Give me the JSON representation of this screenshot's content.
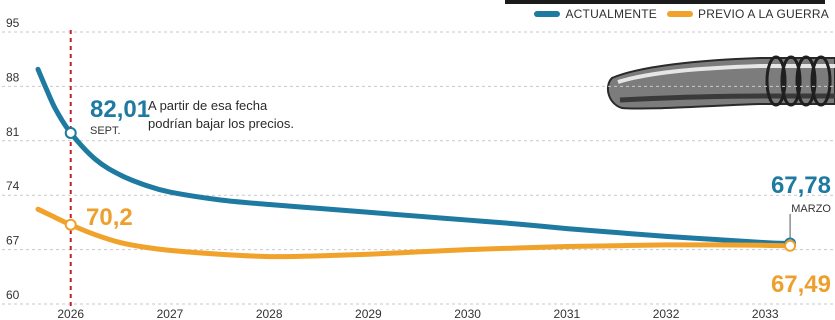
{
  "legend": {
    "actual_label": "ACTUALMENTE",
    "previo_label": "PREVIO A LA GUERRA"
  },
  "annotation": {
    "sept_value": "82,01",
    "sept_label": "SEPT.",
    "note_line1": "A partir de esa fecha",
    "note_line2": "podrían bajar los precios.",
    "orange_start_value": "70,2",
    "march_value": "67,78",
    "march_label": "MARZO",
    "end_orange_value": "67,49"
  },
  "colors": {
    "actual": "#1e7aa0",
    "previo": "#f0a22a",
    "marker_line": "#c8202a",
    "grid": "#c9c9c9"
  },
  "chart_data": {
    "type": "line",
    "x_ticks": [
      "2026",
      "2027",
      "2028",
      "2029",
      "2030",
      "2031",
      "2032",
      "2033"
    ],
    "y_ticks": [
      60,
      67,
      74,
      81,
      88,
      95
    ],
    "ylim": [
      60,
      95
    ],
    "xlim": [
      2025.65,
      2033.35
    ],
    "vertical_marker_x": 2026.0,
    "series": [
      {
        "name": "ACTUALMENTE",
        "x": [
          2025.67,
          2025.75,
          2025.85,
          2026.0,
          2026.25,
          2026.5,
          2026.75,
          2027.0,
          2027.5,
          2028.0,
          2028.5,
          2029.0,
          2029.5,
          2030.0,
          2030.5,
          2031.0,
          2031.5,
          2032.0,
          2032.5,
          2033.0,
          2033.25
        ],
        "y": [
          90.2,
          87.8,
          85.0,
          82.01,
          78.6,
          76.6,
          75.3,
          74.4,
          73.4,
          72.8,
          72.3,
          71.8,
          71.3,
          70.8,
          70.3,
          69.7,
          69.2,
          68.7,
          68.3,
          67.9,
          67.78
        ]
      },
      {
        "name": "PREVIO A LA GUERRA",
        "x": [
          2025.67,
          2025.8,
          2026.0,
          2026.25,
          2026.5,
          2026.75,
          2027.0,
          2027.5,
          2028.0,
          2028.5,
          2029.0,
          2029.5,
          2030.0,
          2030.5,
          2031.0,
          2031.5,
          2032.0,
          2032.5,
          2033.0,
          2033.25
        ],
        "y": [
          72.2,
          71.4,
          70.2,
          68.9,
          67.9,
          67.3,
          66.9,
          66.4,
          66.1,
          66.2,
          66.4,
          66.7,
          67.0,
          67.2,
          67.4,
          67.5,
          67.6,
          67.6,
          67.55,
          67.49
        ]
      }
    ],
    "highlights": [
      {
        "series": "ACTUALMENTE",
        "x": 2026.0,
        "y": 82.01
      },
      {
        "series": "PREVIO A LA GUERRA",
        "x": 2026.0,
        "y": 70.2
      },
      {
        "series": "ACTUALMENTE",
        "x": 2033.25,
        "y": 67.78
      },
      {
        "series": "PREVIO A LA GUERRA",
        "x": 2033.25,
        "y": 67.49
      }
    ],
    "grid": true,
    "legend_position": "top-right"
  }
}
